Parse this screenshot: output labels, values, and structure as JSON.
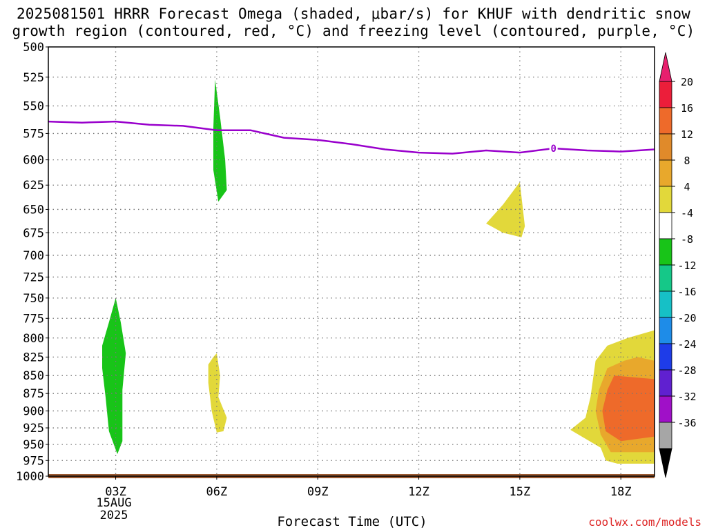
{
  "title": {
    "line1": "2025081501 HRRR Forecast Omega (shaded, μbar/s) for KHUF with dendritic snow",
    "line2": "growth region (contoured, red, °C) and freezing level (contoured, purple, °C)"
  },
  "credit": "coolwx.com/models",
  "date_label": [
    "15AUG",
    "2025"
  ],
  "colors": {
    "freezing_level": "#9900cc",
    "ground": "#9a5a32",
    "grid": "#777777"
  },
  "chart_data": {
    "type": "time-height",
    "xlabel": "Forecast Time (UTC)",
    "x_ticks": [
      "03Z",
      "06Z",
      "09Z",
      "12Z",
      "15Z",
      "18Z"
    ],
    "x_tick_hours": [
      3,
      6,
      9,
      12,
      15,
      18
    ],
    "xlim": [
      1,
      19
    ],
    "y_ticks": [
      500,
      525,
      550,
      575,
      600,
      625,
      650,
      675,
      700,
      725,
      750,
      775,
      800,
      825,
      850,
      875,
      900,
      925,
      950,
      975,
      1000
    ],
    "ylim": [
      500,
      1000
    ],
    "y_scale": "log-pressure",
    "grid": true,
    "colorbar": {
      "labels": [
        "20",
        "16",
        "12",
        "8",
        "4",
        "-4",
        "-8",
        "-12",
        "-16",
        "-20",
        "-24",
        "-28",
        "-32",
        "-36"
      ],
      "colors": [
        "#ec1e3a",
        "#ee6a2a",
        "#e08a2a",
        "#e8a82c",
        "#e2d83a",
        "#ffffff",
        "#18c418",
        "#15c888",
        "#16c0c6",
        "#1e8ce8",
        "#1e3ce8",
        "#6020d0",
        "#a010c8",
        "#a6a6a6"
      ],
      "top_arrow_color": "#e8206e",
      "bottom_arrow_color": "#000000"
    },
    "freezing_level": {
      "label": "0",
      "label_x": 16,
      "x": [
        1,
        2,
        3,
        4,
        5,
        6,
        7,
        8,
        9,
        10,
        11,
        12,
        13,
        14,
        15,
        16,
        17,
        18,
        19
      ],
      "y": [
        564,
        565,
        564,
        567,
        568,
        572,
        572,
        579,
        581,
        585,
        590,
        593,
        594,
        591,
        593,
        589,
        591,
        592,
        590
      ]
    },
    "omega_regions": [
      {
        "color": "#18c418",
        "points": [
          [
            3,
            750
          ],
          [
            3.15,
            780
          ],
          [
            3.3,
            820
          ],
          [
            3.2,
            870
          ],
          [
            3.2,
            945
          ],
          [
            3.05,
            965
          ],
          [
            2.8,
            930
          ],
          [
            2.7,
            880
          ],
          [
            2.6,
            840
          ],
          [
            2.6,
            810
          ],
          [
            2.8,
            780
          ]
        ]
      },
      {
        "color": "#18c418",
        "points": [
          [
            5.95,
            527
          ],
          [
            6.1,
            560
          ],
          [
            6.25,
            600
          ],
          [
            6.3,
            630
          ],
          [
            6.05,
            642
          ],
          [
            5.9,
            610
          ],
          [
            5.9,
            570
          ]
        ]
      },
      {
        "color": "#e2d83a",
        "points": [
          [
            6.0,
            820
          ],
          [
            6.1,
            850
          ],
          [
            6.05,
            880
          ],
          [
            6.3,
            910
          ],
          [
            6.2,
            930
          ],
          [
            6.0,
            932
          ],
          [
            5.85,
            900
          ],
          [
            5.75,
            860
          ],
          [
            5.75,
            835
          ],
          [
            5.9,
            825
          ]
        ]
      },
      {
        "color": "#e2d83a",
        "points": [
          [
            15,
            622
          ],
          [
            15.15,
            668
          ],
          [
            15.05,
            680
          ],
          [
            14.5,
            675
          ],
          [
            14.0,
            665
          ],
          [
            14.5,
            645
          ]
        ]
      },
      {
        "color": "#e2d83a",
        "points": [
          [
            19,
            790
          ],
          [
            19,
            980
          ],
          [
            17.9,
            980
          ],
          [
            17.55,
            975
          ],
          [
            17.4,
            955
          ],
          [
            16.5,
            928
          ],
          [
            16.95,
            910
          ],
          [
            17.1,
            880
          ],
          [
            17.25,
            830
          ],
          [
            17.6,
            810
          ],
          [
            18.2,
            800
          ],
          [
            18.6,
            795
          ]
        ]
      },
      {
        "color": "#e8a82c",
        "points": [
          [
            19,
            830
          ],
          [
            19,
            962
          ],
          [
            17.7,
            962
          ],
          [
            17.4,
            935
          ],
          [
            17.25,
            900
          ],
          [
            17.35,
            870
          ],
          [
            17.6,
            840
          ],
          [
            18.1,
            830
          ],
          [
            18.5,
            825
          ]
        ]
      },
      {
        "color": "#ee6a2a",
        "points": [
          [
            19,
            855
          ],
          [
            19,
            938
          ],
          [
            18,
            945
          ],
          [
            17.55,
            930
          ],
          [
            17.45,
            900
          ],
          [
            17.6,
            870
          ],
          [
            17.8,
            850
          ]
        ]
      }
    ],
    "ground_pressure": 1000
  }
}
